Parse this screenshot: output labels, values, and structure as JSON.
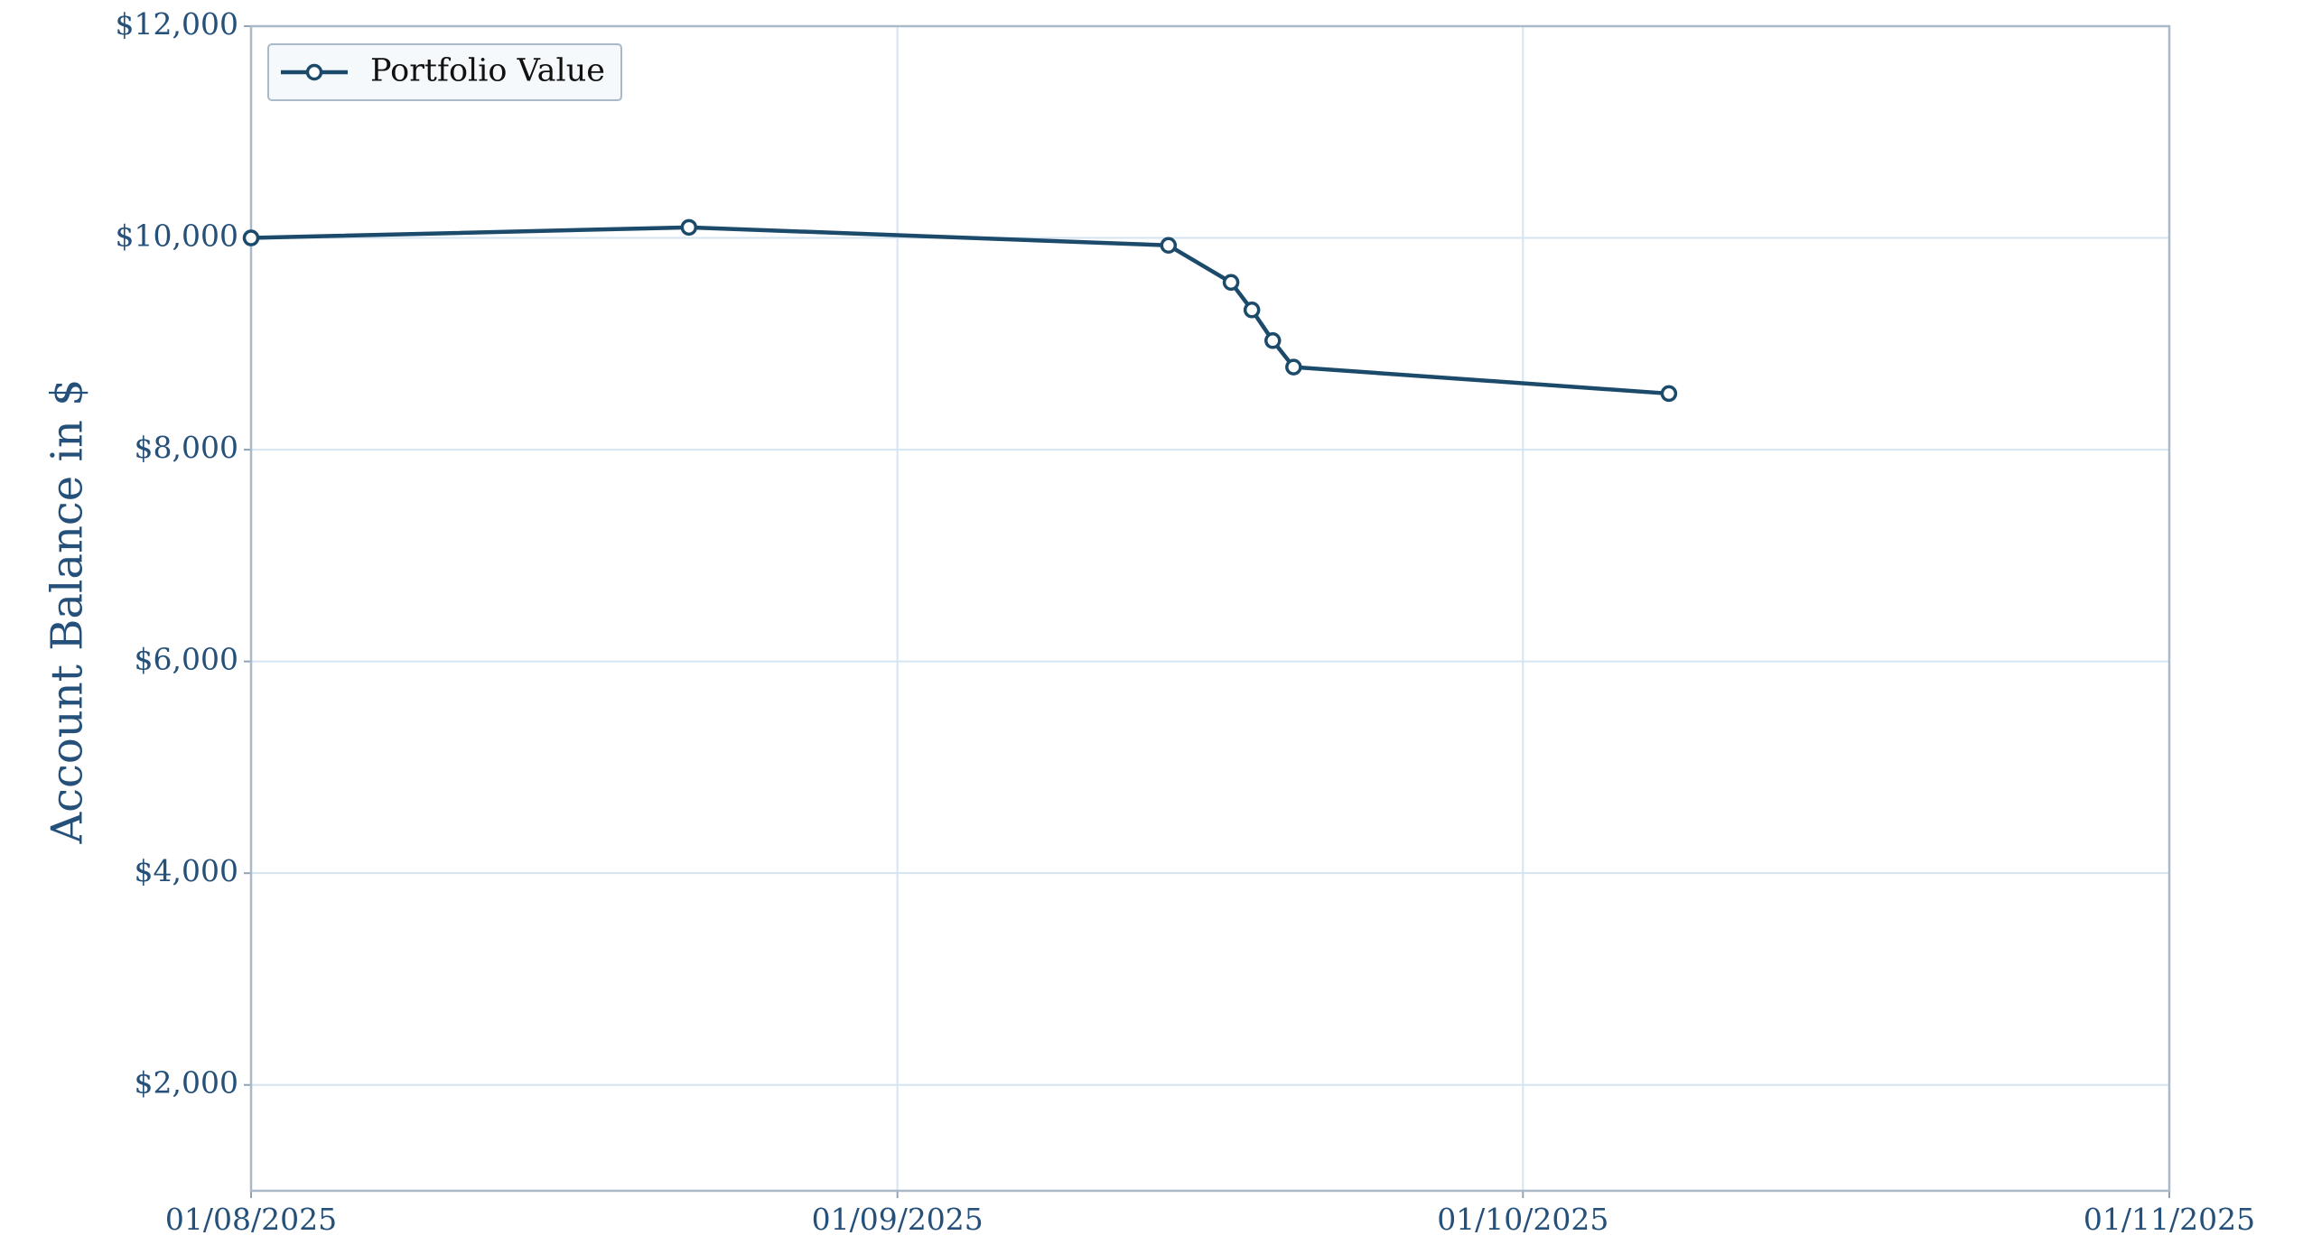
{
  "chart_data": {
    "type": "line",
    "y_label": "Account Balance in $",
    "x": [
      "2025-08-01",
      "2025-08-22",
      "2025-09-14",
      "2025-09-17",
      "2025-09-18",
      "2025-09-19",
      "2025-09-20",
      "2025-10-08"
    ],
    "series": [
      {
        "name": "Portfolio Value",
        "color": "#1b4a6b",
        "values": [
          10000,
          10100,
          9930,
          9580,
          9320,
          9030,
          8780,
          8530
        ]
      }
    ],
    "xlim": [
      "2025-08-01",
      "2025-11-01"
    ],
    "xticks": [
      {
        "value": "2025-08-01",
        "label": "01/08/2025"
      },
      {
        "value": "2025-09-01",
        "label": "01/09/2025"
      },
      {
        "value": "2025-10-01",
        "label": "01/10/2025"
      },
      {
        "value": "2025-11-01",
        "label": "01/11/2025"
      }
    ],
    "ylim": [
      1000,
      12000
    ],
    "yticks": [
      {
        "value": 2000,
        "label": "$2,000"
      },
      {
        "value": 4000,
        "label": "$4,000"
      },
      {
        "value": 6000,
        "label": "$6,000"
      },
      {
        "value": 8000,
        "label": "$8,000"
      },
      {
        "value": 10000,
        "label": "$10,000"
      },
      {
        "value": 12000,
        "label": "$12,000"
      }
    ],
    "grid": true,
    "legend": "upper-left"
  }
}
